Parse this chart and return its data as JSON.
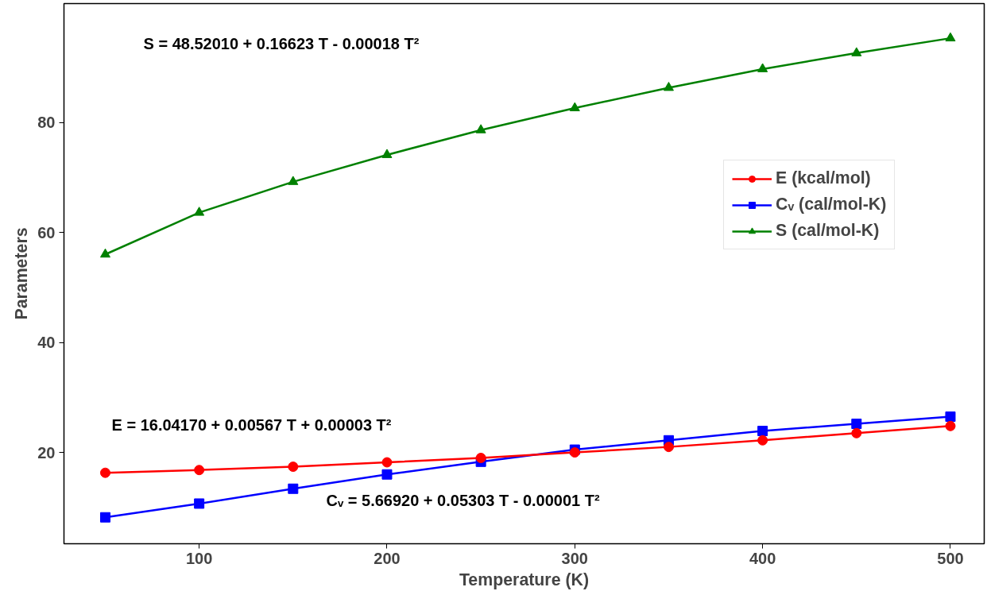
{
  "chart_data": {
    "type": "line",
    "xlabel": "Temperature (K)",
    "ylabel": "Parameters",
    "x": [
      50,
      100,
      150,
      200,
      250,
      300,
      350,
      400,
      450,
      500
    ],
    "series": [
      {
        "name": "E (kcal/mol)",
        "color": "#ff0000",
        "marker": "circle",
        "values": [
          16.3,
          16.8,
          17.4,
          18.2,
          19.0,
          20.0,
          21.0,
          22.2,
          23.5,
          24.8
        ]
      },
      {
        "name": "Cᵥ (cal/mol-K)",
        "color": "#0000ff",
        "marker": "square",
        "values": [
          8.2,
          10.7,
          13.4,
          16.0,
          18.3,
          20.5,
          22.2,
          23.9,
          25.2,
          26.5
        ]
      },
      {
        "name": "S (cal/mol-K)",
        "color": "#008000",
        "marker": "triangle",
        "values": [
          56.0,
          63.6,
          69.2,
          74.1,
          78.6,
          82.6,
          86.3,
          89.7,
          92.6,
          95.3
        ]
      }
    ],
    "annotations": [
      "S = 48.52010 + 0.16623 T - 0.00018 T²",
      "E  = 16.04170 + 0.00567 T  + 0.00003 T²",
      "Cᵥ = 5.66920 + 0.05303 T - 0.00001 T²"
    ],
    "xlim": [
      28,
      518
    ],
    "ylim": [
      3.4,
      101.6
    ],
    "xticks": [
      100,
      200,
      300,
      400,
      500
    ],
    "yticks": [
      20,
      40,
      60,
      80
    ],
    "grid": false,
    "legend": "right",
    "line_style": "solid"
  }
}
